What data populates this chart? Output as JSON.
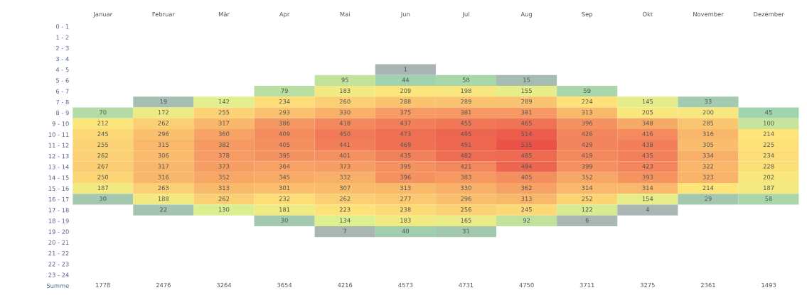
{
  "chart_data": {
    "type": "heatmap",
    "categories": [
      "Januar",
      "Februar",
      "Mär",
      "Apr",
      "Mai",
      "Jun",
      "Jul",
      "Aug",
      "Sep",
      "Okt",
      "November",
      "Dezember"
    ],
    "y_categories": [
      "0 - 1",
      "1 - 2",
      "2 - 3",
      "3 - 4",
      "4 - 5",
      "5 - 6",
      "6 - 7",
      "7 - 8",
      "8 - 9",
      "9 - 10",
      "10 - 11",
      "11 - 12",
      "12 - 13",
      "13 - 14",
      "14 - 15",
      "15 - 16",
      "16 - 17",
      "17 - 18",
      "18 - 19",
      "19 - 20",
      "20 - 21",
      "21 - 22",
      "22 - 23",
      "23 - 24",
      "Summe"
    ],
    "cells": [
      [
        null,
        null,
        null,
        null,
        null,
        null,
        null,
        null,
        null,
        null,
        null,
        null
      ],
      [
        null,
        null,
        null,
        null,
        null,
        null,
        null,
        null,
        null,
        null,
        null,
        null
      ],
      [
        null,
        null,
        null,
        null,
        null,
        null,
        null,
        null,
        null,
        null,
        null,
        null
      ],
      [
        null,
        null,
        null,
        null,
        null,
        null,
        null,
        null,
        null,
        null,
        null,
        null
      ],
      [
        null,
        null,
        null,
        null,
        null,
        1,
        null,
        null,
        null,
        null,
        null,
        null
      ],
      [
        null,
        null,
        null,
        null,
        95,
        44,
        58,
        15,
        null,
        null,
        null,
        null
      ],
      [
        null,
        null,
        null,
        79,
        183,
        209,
        198,
        155,
        59,
        null,
        null,
        null
      ],
      [
        null,
        19,
        142,
        234,
        260,
        288,
        289,
        289,
        224,
        145,
        33,
        null
      ],
      [
        70,
        172,
        255,
        293,
        330,
        375,
        381,
        381,
        313,
        205,
        200,
        45
      ],
      [
        212,
        262,
        317,
        386,
        418,
        437,
        455,
        465,
        396,
        348,
        285,
        100
      ],
      [
        245,
        296,
        360,
        409,
        450,
        473,
        495,
        514,
        426,
        416,
        316,
        214
      ],
      [
        255,
        315,
        382,
        405,
        441,
        469,
        491,
        535,
        429,
        438,
        305,
        225
      ],
      [
        262,
        306,
        378,
        395,
        401,
        435,
        482,
        485,
        419,
        435,
        334,
        234
      ],
      [
        267,
        317,
        373,
        364,
        373,
        395,
        421,
        494,
        399,
        423,
        322,
        228
      ],
      [
        250,
        316,
        352,
        345,
        332,
        396,
        383,
        405,
        352,
        393,
        323,
        202
      ],
      [
        187,
        263,
        313,
        301,
        307,
        313,
        330,
        362,
        314,
        314,
        214,
        187
      ],
      [
        30,
        188,
        262,
        232,
        262,
        277,
        296,
        313,
        252,
        154,
        29,
        58
      ],
      [
        null,
        22,
        130,
        181,
        223,
        238,
        256,
        245,
        122,
        4,
        null,
        null
      ],
      [
        null,
        null,
        null,
        30,
        134,
        183,
        165,
        92,
        6,
        null,
        null,
        null
      ],
      [
        null,
        null,
        null,
        null,
        7,
        40,
        31,
        null,
        null,
        null,
        null,
        null
      ],
      [
        null,
        null,
        null,
        null,
        null,
        null,
        null,
        null,
        null,
        null,
        null,
        null
      ],
      [
        null,
        null,
        null,
        null,
        null,
        null,
        null,
        null,
        null,
        null,
        null,
        null
      ],
      [
        null,
        null,
        null,
        null,
        null,
        null,
        null,
        null,
        null,
        null,
        null,
        null
      ],
      [
        null,
        null,
        null,
        null,
        null,
        null,
        null,
        null,
        null,
        null,
        null,
        null
      ],
      [
        null,
        null,
        null,
        null,
        null,
        null,
        null,
        null,
        null,
        null,
        null,
        null
      ]
    ],
    "cell_labels": [
      [
        null,
        null,
        null,
        null,
        null,
        null,
        null,
        null,
        null,
        null,
        null,
        null
      ],
      [
        null,
        null,
        null,
        null,
        null,
        null,
        null,
        null,
        null,
        null,
        null,
        null
      ],
      [
        null,
        null,
        null,
        null,
        null,
        null,
        null,
        null,
        null,
        null,
        null,
        null
      ],
      [
        null,
        null,
        null,
        null,
        null,
        null,
        null,
        null,
        null,
        null,
        null,
        null
      ],
      [
        null,
        null,
        null,
        null,
        null,
        "1",
        null,
        null,
        null,
        null,
        null,
        null
      ],
      [
        null,
        null,
        null,
        null,
        "95",
        "44",
        "58",
        "15",
        null,
        null,
        null,
        null
      ],
      [
        null,
        null,
        null,
        "79",
        "183",
        "209",
        "198",
        "155",
        "59",
        null,
        null,
        null
      ],
      [
        null,
        "19",
        "142",
        "234",
        "260",
        "288",
        "289",
        "289",
        "224",
        "145",
        "33",
        null
      ],
      [
        "70",
        "172",
        "255",
        "293",
        "330",
        "375",
        "381",
        "381",
        "313",
        "205",
        "200",
        "45"
      ],
      [
        "212",
        "262",
        "317",
        "386",
        "418",
        "437",
        "455",
        "465",
        "396",
        "348",
        "285",
        "100"
      ],
      [
        "245",
        "296",
        "360",
        "409",
        "450",
        "473",
        "495",
        "514",
        "426",
        "416",
        "316",
        "214"
      ],
      [
        "255",
        "315",
        "382",
        "405",
        "441",
        "469",
        "491",
        "535",
        "429",
        "438",
        "305",
        "225"
      ],
      [
        "262",
        "306",
        "378",
        "395",
        "401",
        "435",
        "482",
        "485",
        "419",
        "435",
        "334",
        "234"
      ],
      [
        "267",
        "317",
        "373",
        "364",
        "373",
        "395",
        "421",
        "494",
        "399",
        "423",
        "322",
        "228"
      ],
      [
        "250",
        "316",
        "352",
        "345",
        "332",
        "396",
        "383",
        "405",
        "352",
        "393",
        "323",
        "202"
      ],
      [
        "187",
        "263",
        "313",
        "301",
        "307",
        "313",
        "330",
        "362",
        "314",
        "314",
        "214",
        "187"
      ],
      [
        "30",
        "188",
        "262",
        "232",
        "262",
        "277",
        "296",
        "313",
        "252",
        "154",
        "29",
        "58"
      ],
      [
        null,
        "22",
        "130",
        "181",
        "223",
        "238",
        "256",
        "245",
        "122",
        "4",
        null,
        null
      ],
      [
        null,
        null,
        null,
        "30",
        "134",
        "183",
        "165",
        "92",
        "6",
        null,
        null,
        null
      ],
      [
        null,
        null,
        null,
        null,
        "7",
        "40",
        "31",
        null,
        null,
        null,
        null,
        null
      ],
      [
        null,
        null,
        null,
        null,
        null,
        null,
        null,
        null,
        null,
        null,
        null,
        null
      ],
      [
        null,
        null,
        null,
        null,
        null,
        null,
        null,
        null,
        null,
        null,
        null,
        null
      ],
      [
        null,
        null,
        null,
        null,
        null,
        null,
        null,
        null,
        null,
        null,
        null,
        null
      ],
      [
        null,
        null,
        null,
        null,
        null,
        null,
        null,
        null,
        null,
        null,
        null,
        null
      ],
      [
        "1778",
        "2476",
        "3264",
        "3654",
        "4216",
        "4573",
        "4731",
        "4750",
        "3711",
        "3275",
        "2361",
        "1493"
      ]
    ]
  }
}
